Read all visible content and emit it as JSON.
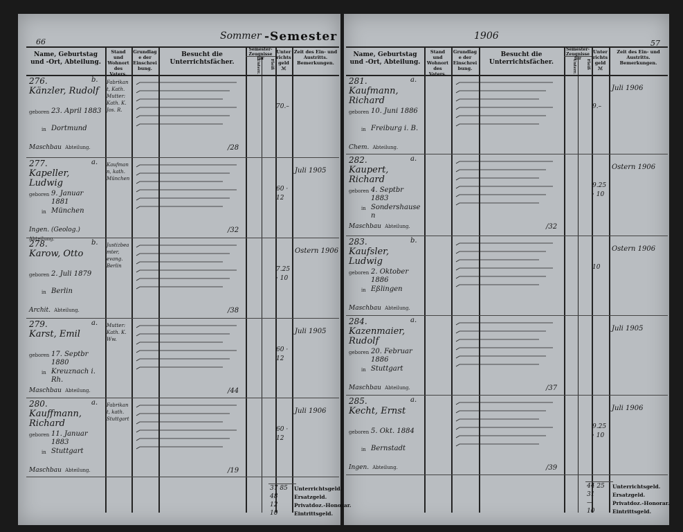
{
  "left_page": {
    "page_number": "66",
    "semester_hand": "Sommer",
    "semester_label": "-Semester",
    "headers": {
      "name": "Name, Geburtstag und -Ort, Abteilung.",
      "stand": "Stand und Wohnort des Vaters.",
      "grundlage": "Grundlage der Einschreibung.",
      "besucht": "Besucht die Unterrichtsfächer.",
      "semester": "Semester-Zeugnisse für",
      "sem_a": "Unterr.",
      "sem_b": "Fleiß",
      "geld": "Unterrichtsgeld ℳ",
      "zeit": "Zeit des Ein- und Austritts. Bemerkungen."
    },
    "entries": [
      {
        "num": "276.",
        "cls": "b.",
        "name": "Känzler, Rudolf",
        "born": "23. April 1883",
        "place": "Dortmund",
        "abt": "Maschbau",
        "stand": "Fabrikant, Kath. Mutter: Kath. K. Jos. R.",
        "fee": "70.–",
        "remark": "",
        "page_ref": "/28"
      },
      {
        "num": "277.",
        "cls": "a.",
        "name": "Kapeller, Ludwig",
        "born": "9. Januar 1881",
        "place": "München",
        "abt": "Ingen. (Geolog.)",
        "stand": "Kaufmann, kath. München",
        "fee": "60 · 12",
        "remark": "Juli 1905",
        "page_ref": "/32"
      },
      {
        "num": "278.",
        "cls": "b.",
        "name": "Karow, Otto",
        "born": "2. Juli 1879",
        "place": "Berlin",
        "abt": "Archit.",
        "stand": "Justizbeamter, evang. Berlin",
        "fee": "7.25 · 10",
        "remark": "Ostern 1906",
        "page_ref": "/38"
      },
      {
        "num": "279.",
        "cls": "a.",
        "name": "Karst, Emil",
        "born": "17. Septbr 1880",
        "place": "Kreuznach i. Rh.",
        "abt": "Maschbau",
        "stand": "Mutter: Kath. K. Ww.",
        "fee": "60 · 12",
        "remark": "Juli 1905",
        "page_ref": "/44"
      },
      {
        "num": "280.",
        "cls": "a.",
        "name": "Kauffmann, Richard",
        "born": "11. Januar 1883",
        "place": "Stuttgart",
        "abt": "Maschbau",
        "stand": "Fabrikant, kath. Stuttgart",
        "fee": "60 · 12",
        "remark": "Juli 1906",
        "page_ref": "/19"
      }
    ],
    "totals": {
      "labels": [
        "Unterrichtsgeld.",
        "Ersatzgeld.",
        "Privatdoz.-Honorar.",
        "Eintrittsgeld."
      ],
      "values": [
        "37 85",
        "48",
        "12",
        "10"
      ]
    }
  },
  "right_page": {
    "page_number": "57",
    "year": "1906",
    "entries": [
      {
        "num": "281.",
        "cls": "a.",
        "name": "Kaufmann, Richard",
        "born": "10. Juni 1886",
        "place": "Freiburg i. B.",
        "abt": "Chem.",
        "fee": "9.–",
        "remark": "Juli 1906",
        "page_ref": ""
      },
      {
        "num": "282.",
        "cls": "a.",
        "name": "Kaupert, Richard",
        "born": "4. Septbr 1883",
        "place": "Sondershausen",
        "abt": "Maschbau",
        "fee": "9.25 · 10",
        "remark": "Ostern 1906",
        "page_ref": "/32"
      },
      {
        "num": "283.",
        "cls": "b.",
        "name": "Kaufsler, Ludwig",
        "born": "2. Oktober 1886",
        "place": "Eßlingen",
        "abt": "Maschbau",
        "fee": "10",
        "remark": "Ostern 1906",
        "page_ref": ""
      },
      {
        "num": "284.",
        "cls": "a.",
        "name": "Kazenmaier, Rudolf",
        "born": "20. Februar 1886",
        "place": "Stuttgart",
        "abt": "Maschbau",
        "fee": "",
        "remark": "Juli 1905",
        "page_ref": "/37"
      },
      {
        "num": "285.",
        "cls": "a.",
        "name": "Kecht, Ernst",
        "born": "5. Okt. 1884",
        "place": "Bernstadt",
        "abt": "Ingen.",
        "fee": "9.25 · 10",
        "remark": "Juli 1906",
        "page_ref": "/39"
      }
    ],
    "totals": {
      "labels": [
        "Unterrichtsgeld.",
        "Ersatzgeld.",
        "Privatdoz.-Honorar.",
        "Eintrittsgeld."
      ],
      "values": [
        "44 25",
        "31",
        "—",
        "10"
      ]
    }
  },
  "printed": {
    "geboren": "geboren",
    "in": "in",
    "abteilung": "Abteilung."
  }
}
